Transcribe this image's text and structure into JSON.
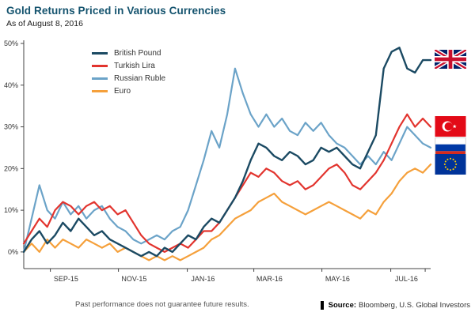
{
  "header": {
    "title": "Gold Returns Priced in Various Currencies",
    "subtitle": "As of August 8, 2016"
  },
  "colors": {
    "title": "#14536e",
    "axis": "#444444"
  },
  "chart_data": {
    "type": "line",
    "title": "Gold Returns Priced in Various Currencies",
    "subtitle": "As of August 8, 2016",
    "xlabel": "",
    "ylabel": "",
    "x_unit": "weeks since 2015-08-08",
    "grid": false,
    "legend_position": "top-left-inside",
    "ylim": [
      -4,
      50
    ],
    "y_tick_values": [
      0,
      10,
      20,
      30,
      40,
      50
    ],
    "y_tick_labels": [
      "0%",
      "10%",
      "20%",
      "30%",
      "40%",
      "50%"
    ],
    "x_tick_labels": [
      "SEP-15",
      "NOV-15",
      "JAN-16",
      "MAR-16",
      "MAY-16",
      "JUL-16"
    ],
    "x_tick_weeks": [
      3.4,
      12.1,
      20.9,
      29.4,
      38.1,
      46.9,
      51.3
    ],
    "x_label_weeks": [
      5.4,
      14.1,
      22.9,
      31.4,
      40.1,
      48.9
    ],
    "series": [
      {
        "name": "British Pound",
        "color": "#1b4a63",
        "stroke_width": 2.4,
        "values": [
          0,
          3,
          5,
          2,
          4,
          7,
          5,
          8,
          6,
          4,
          5,
          3,
          2,
          1,
          0,
          -1,
          0,
          -1,
          1,
          0,
          2,
          4,
          3,
          6,
          8,
          7,
          10,
          13,
          17,
          22,
          26,
          25,
          23,
          22,
          24,
          23,
          21,
          22,
          25,
          24,
          25,
          23,
          21,
          20,
          24,
          28,
          44,
          48,
          49,
          44,
          43,
          46,
          46
        ]
      },
      {
        "name": "Turkish Lira",
        "color": "#e2342e",
        "stroke_width": 2.2,
        "values": [
          2,
          5,
          8,
          6,
          10,
          12,
          11,
          9,
          11,
          12,
          10,
          11,
          9,
          10,
          7,
          4,
          2,
          1,
          0,
          1,
          2,
          1,
          3,
          5,
          5,
          7,
          10,
          13,
          16,
          19,
          18,
          20,
          19,
          17,
          16,
          17,
          15,
          16,
          18,
          20,
          21,
          19,
          16,
          15,
          17,
          19,
          22,
          26,
          30,
          33,
          30,
          32,
          30
        ]
      },
      {
        "name": "Russian Ruble",
        "color": "#6ba3c8",
        "stroke_width": 2.2,
        "values": [
          0,
          8,
          16,
          10,
          8,
          12,
          9,
          11,
          8,
          10,
          11,
          8,
          6,
          5,
          3,
          2,
          3,
          4,
          3,
          5,
          6,
          10,
          16,
          22,
          29,
          25,
          33,
          44,
          38,
          33,
          30,
          33,
          30,
          32,
          29,
          28,
          31,
          29,
          31,
          28,
          26,
          25,
          23,
          21,
          23,
          21,
          24,
          22,
          26,
          30,
          28,
          26,
          25
        ]
      },
      {
        "name": "Euro",
        "color": "#f5a03b",
        "stroke_width": 2.2,
        "values": [
          0,
          2,
          0,
          3,
          1,
          3,
          2,
          1,
          3,
          2,
          1,
          2,
          0,
          1,
          0,
          -1,
          -2,
          -1,
          -2,
          -1,
          -2,
          -1,
          0,
          1,
          3,
          4,
          6,
          8,
          9,
          10,
          12,
          13,
          14,
          12,
          11,
          10,
          9,
          10,
          11,
          12,
          11,
          10,
          9,
          8,
          10,
          9,
          12,
          14,
          17,
          19,
          20,
          19,
          21
        ]
      }
    ]
  },
  "flags": [
    {
      "country": "United Kingdom",
      "series": "British Pound",
      "end_value_pct": 46
    },
    {
      "country": "Turkey",
      "series": "Turkish Lira",
      "end_value_pct": 30
    },
    {
      "country": "Russia",
      "series": "Russian Ruble",
      "end_value_pct": 25
    },
    {
      "country": "European Union",
      "series": "Euro",
      "end_value_pct": 21
    }
  ],
  "footer": {
    "disclaimer": "Past performance does not guarantee future results.",
    "source_label": "Source:",
    "source_text": "Bloomberg, U.S. Global Investors"
  }
}
